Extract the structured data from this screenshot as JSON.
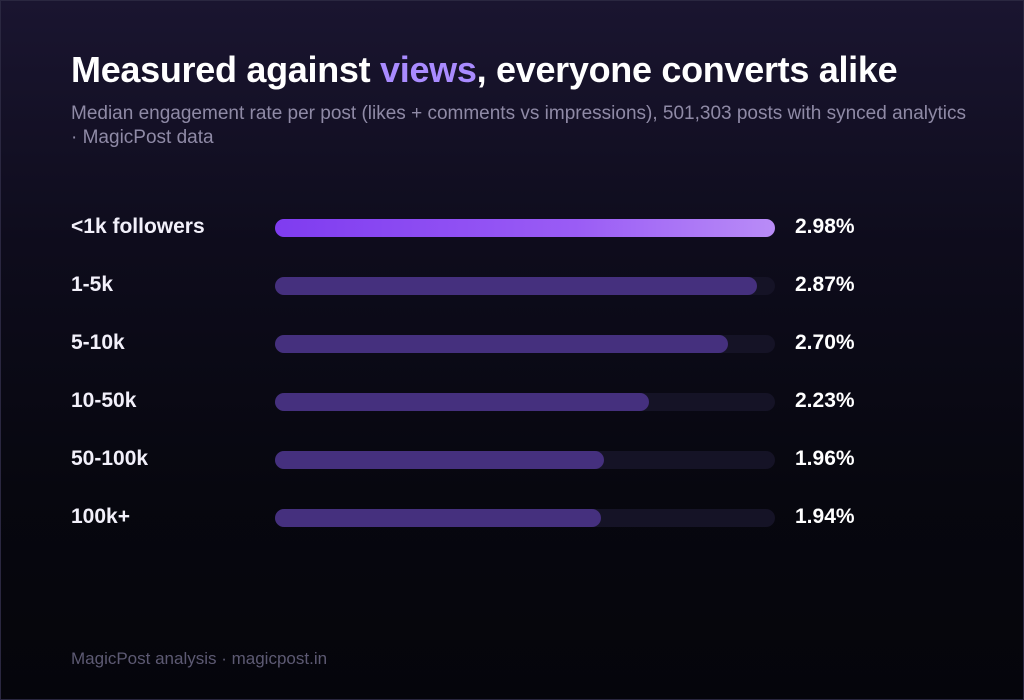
{
  "header": {
    "title_pre": "Measured against ",
    "title_accent": "views",
    "title_post": ", everyone converts alike",
    "subtitle": "Median engagement rate per post (likes + comments vs impressions), 501,303 posts with synced analytics · MagicPost data"
  },
  "footer": {
    "source": "MagicPost analysis · magicpost.in"
  },
  "colors": {
    "highlight_bar": "#9a5cf5",
    "bar": "#45307e",
    "track": "#151326",
    "accent_text": "#a98bff"
  },
  "chart_data": {
    "type": "bar",
    "orientation": "horizontal",
    "categories": [
      "<1k followers",
      "1-5k",
      "5-10k",
      "10-50k",
      "50-100k",
      "100k+"
    ],
    "values": [
      2.98,
      2.87,
      2.7,
      2.23,
      1.96,
      1.94
    ],
    "value_labels": [
      "2.98%",
      "2.87%",
      "2.70%",
      "2.23%",
      "1.96%",
      "1.94%"
    ],
    "xlim": [
      0,
      2.98
    ],
    "grid": false,
    "legend": "none"
  }
}
